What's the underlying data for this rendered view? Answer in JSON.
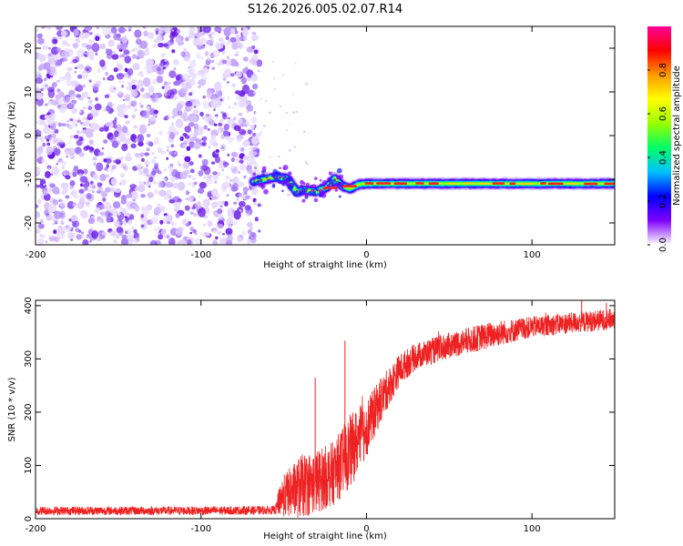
{
  "figure_title": "S126.2026.005.02.07.R14",
  "chart_data": [
    {
      "type": "heatmap",
      "title": "S126.2026.005.02.07.R14",
      "xlabel": "Height of straight line (km)",
      "ylabel": "Frequency (Hz)",
      "xlim": [
        -200,
        150
      ],
      "ylim": [
        -25,
        25
      ],
      "x_ticks": [
        -200,
        -100,
        0,
        100
      ],
      "y_ticks": [
        -20,
        -10,
        0,
        10,
        20
      ],
      "x_tick_labels": [
        "-200",
        "-100",
        "0",
        "100"
      ],
      "y_tick_labels": [
        "-20",
        "-10",
        "0",
        "10",
        "20"
      ],
      "noise_region_x": [
        -200,
        -68
      ],
      "signal_frequency_hz": -11,
      "signal_track": [
        {
          "x": -68,
          "y": -10.5
        },
        {
          "x": -55,
          "y": -9.5
        },
        {
          "x": -48,
          "y": -9.8
        },
        {
          "x": -42,
          "y": -13
        },
        {
          "x": -38,
          "y": -12.5
        },
        {
          "x": -30,
          "y": -12.8
        },
        {
          "x": -24,
          "y": -11.8
        },
        {
          "x": -19,
          "y": -9.8
        },
        {
          "x": -15,
          "y": -11.5
        },
        {
          "x": -10,
          "y": -12.2
        },
        {
          "x": -5,
          "y": -11.2
        },
        {
          "x": 0,
          "y": -11
        },
        {
          "x": 50,
          "y": -11
        },
        {
          "x": 100,
          "y": -11
        },
        {
          "x": 150,
          "y": -11
        }
      ],
      "colorbar": {
        "label": "Normalized spectral amplitude",
        "range": [
          0,
          1
        ],
        "ticks": [
          0.0,
          0.2,
          0.4,
          0.6,
          0.8
        ],
        "tick_labels": [
          "0.0",
          "0.2",
          "0.4",
          "0.6",
          "0.8"
        ],
        "colormap": [
          "#ffffff",
          "#7f00ff",
          "#0000ff",
          "#00c0ff",
          "#00ff66",
          "#99ff00",
          "#ffff00",
          "#ff9900",
          "#ff0000",
          "#ff0099"
        ]
      },
      "grid": false
    },
    {
      "type": "line",
      "xlabel": "Height of straight line (km)",
      "ylabel": "SNR (10 * v/v)",
      "xlim": [
        -200,
        150
      ],
      "ylim": [
        0,
        410
      ],
      "x_ticks": [
        -200,
        -100,
        0,
        100
      ],
      "y_ticks": [
        0,
        100,
        200,
        300,
        400
      ],
      "x_tick_labels": [
        "-200",
        "-100",
        "0",
        "100"
      ],
      "y_tick_labels": [
        "0",
        "100",
        "200",
        "300",
        "400"
      ],
      "line_color": "#ee2222",
      "series": [
        {
          "name": "SNR",
          "envelope": [
            {
              "x": -200,
              "mean": 15,
              "spread": 8
            },
            {
              "x": -100,
              "mean": 15,
              "spread": 8
            },
            {
              "x": -55,
              "mean": 16,
              "spread": 8
            },
            {
              "x": -52,
              "mean": 40,
              "spread": 35
            },
            {
              "x": -40,
              "mean": 60,
              "spread": 60
            },
            {
              "x": -30,
              "mean": 70,
              "spread": 60
            },
            {
              "x": -20,
              "mean": 85,
              "spread": 60
            },
            {
              "x": -10,
              "mean": 125,
              "spread": 70
            },
            {
              "x": 0,
              "mean": 170,
              "spread": 55
            },
            {
              "x": 10,
              "mean": 230,
              "spread": 40
            },
            {
              "x": 20,
              "mean": 280,
              "spread": 30
            },
            {
              "x": 30,
              "mean": 305,
              "spread": 25
            },
            {
              "x": 50,
              "mean": 325,
              "spread": 25
            },
            {
              "x": 75,
              "mean": 345,
              "spread": 25
            },
            {
              "x": 100,
              "mean": 360,
              "spread": 20
            },
            {
              "x": 125,
              "mean": 368,
              "spread": 20
            },
            {
              "x": 150,
              "mean": 375,
              "spread": 20
            }
          ],
          "spikes": [
            {
              "x": -13,
              "y": 334
            },
            {
              "x": -31,
              "y": 265
            },
            {
              "x": 130,
              "y": 412
            },
            {
              "x": 145,
              "y": 405
            }
          ]
        }
      ],
      "grid": false
    }
  ]
}
